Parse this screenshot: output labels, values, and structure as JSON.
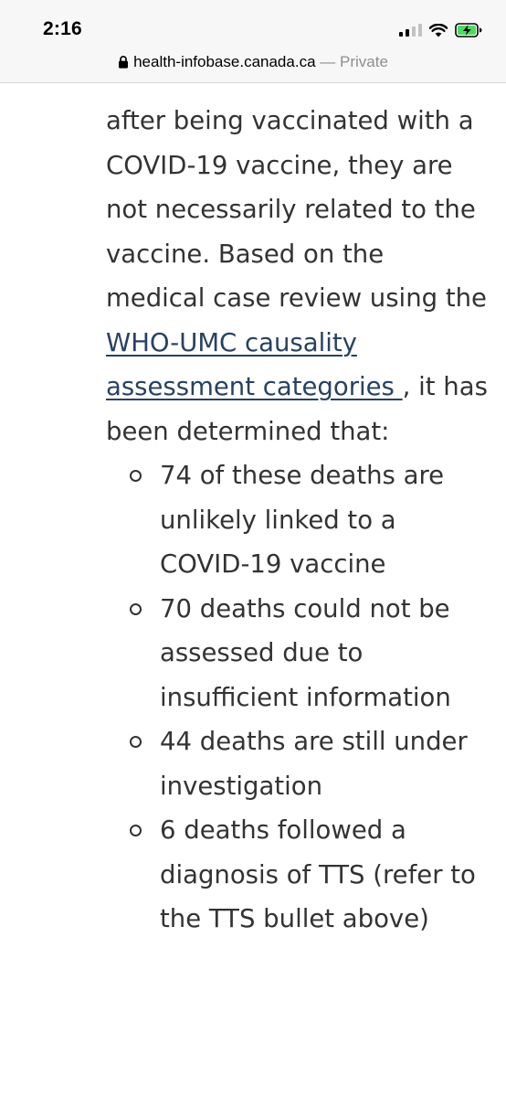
{
  "status_bar": {
    "time": "2:16"
  },
  "browser": {
    "url": "health-infobase.canada.ca",
    "separator": " — ",
    "mode": "Private"
  },
  "content": {
    "para_before_link": "after being vaccinated with a COVID-19 vaccine, they are not necessarily related to the vaccine. Based on the medical case review using the ",
    "link_text": "WHO-UMC causality assessment categories ",
    "para_after_link": ", it has been determined that:",
    "items": [
      "74 of these deaths are unlikely linked to a COVID-19 vaccine",
      "70 deaths could not be assessed due to insufficient information",
      "44 deaths are still under investigation",
      "6 deaths followed a diagnosis of TTS (refer to the TTS bullet above)"
    ]
  },
  "colors": {
    "text": "#333333",
    "link": "#284162",
    "battery": "#4cd964",
    "chrome_bg": "#f7f7f7"
  },
  "icons": [
    "cellular-signal-icon",
    "wifi-icon",
    "battery-charging-icon",
    "lock-icon"
  ]
}
